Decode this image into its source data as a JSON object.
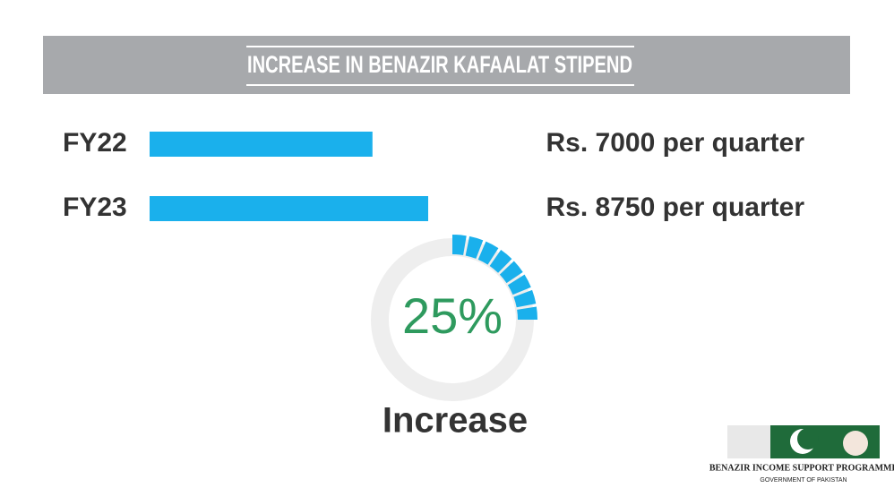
{
  "header": {
    "title": "INCREASE IN BENAZIR KAFAALAT STIPEND"
  },
  "chart_data": [
    {
      "type": "bar",
      "categories": [
        "FY22",
        "FY23"
      ],
      "values": [
        7000,
        8750
      ],
      "value_labels": [
        "Rs. 7000 per quarter",
        "Rs. 8750 per quarter"
      ],
      "color": "#1ab0ec"
    },
    {
      "type": "donut",
      "value": 25,
      "value_label": "25%",
      "label": "Increase",
      "color": "#1ab0ec",
      "track_color": "#eeeeee",
      "label_color": "#2e9a5e"
    }
  ],
  "logo": {
    "title": "BENAZIR INCOME SUPPORT PROGRAMME",
    "subtitle": "GOVERNMENT OF PAKISTAN"
  }
}
